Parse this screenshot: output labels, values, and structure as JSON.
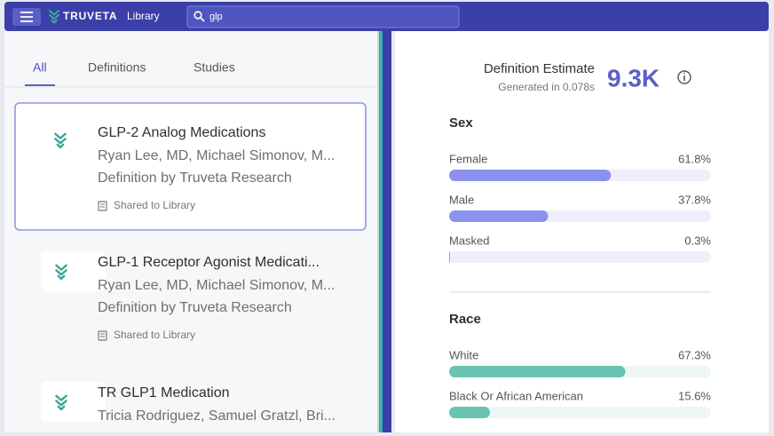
{
  "header": {
    "brand": "TRUVETA",
    "section": "Library",
    "search": "glp"
  },
  "tabs": [
    "All",
    "Definitions",
    "Studies"
  ],
  "active_tab": 0,
  "results": [
    {
      "title": "GLP-2 Analog Medications",
      "authors": "Ryan Lee, MD, Michael Simonov, M...",
      "source": "Definition by Truveta Research",
      "status": "Shared to Library",
      "selected": true
    },
    {
      "title": "GLP-1 Receptor Agonist Medicati...",
      "authors": "Ryan Lee, MD, Michael Simonov, M...",
      "source": "Definition by Truveta Research",
      "status": "Shared to Library",
      "selected": false
    },
    {
      "title": "TR GLP1 Medication",
      "authors": "Tricia Rodriguez, Samuel Gratzl, Bri...",
      "selected": false
    }
  ],
  "estimate": {
    "label": "Definition Estimate",
    "generated": "Generated in 0.078s",
    "value": "9.3K"
  },
  "breakdowns": [
    {
      "title": "Sex",
      "xlim": [
        0,
        100
      ],
      "color": "#8b91ef",
      "track": "#efeffb",
      "items": [
        {
          "label": "Female",
          "value": 61.8,
          "value_label": "61.8%"
        },
        {
          "label": "Male",
          "value": 37.8,
          "value_label": "37.8%"
        },
        {
          "label": "Masked",
          "value": 0.3,
          "value_label": "0.3%"
        }
      ]
    },
    {
      "title": "Race",
      "xlim": [
        0,
        100
      ],
      "color": "#69c3b1",
      "track": "#edf7f5",
      "items": [
        {
          "label": "White",
          "value": 67.3,
          "value_label": "67.3%"
        },
        {
          "label": "Black Or African American",
          "value": 15.6,
          "value_label": "15.6%"
        }
      ]
    }
  ]
}
